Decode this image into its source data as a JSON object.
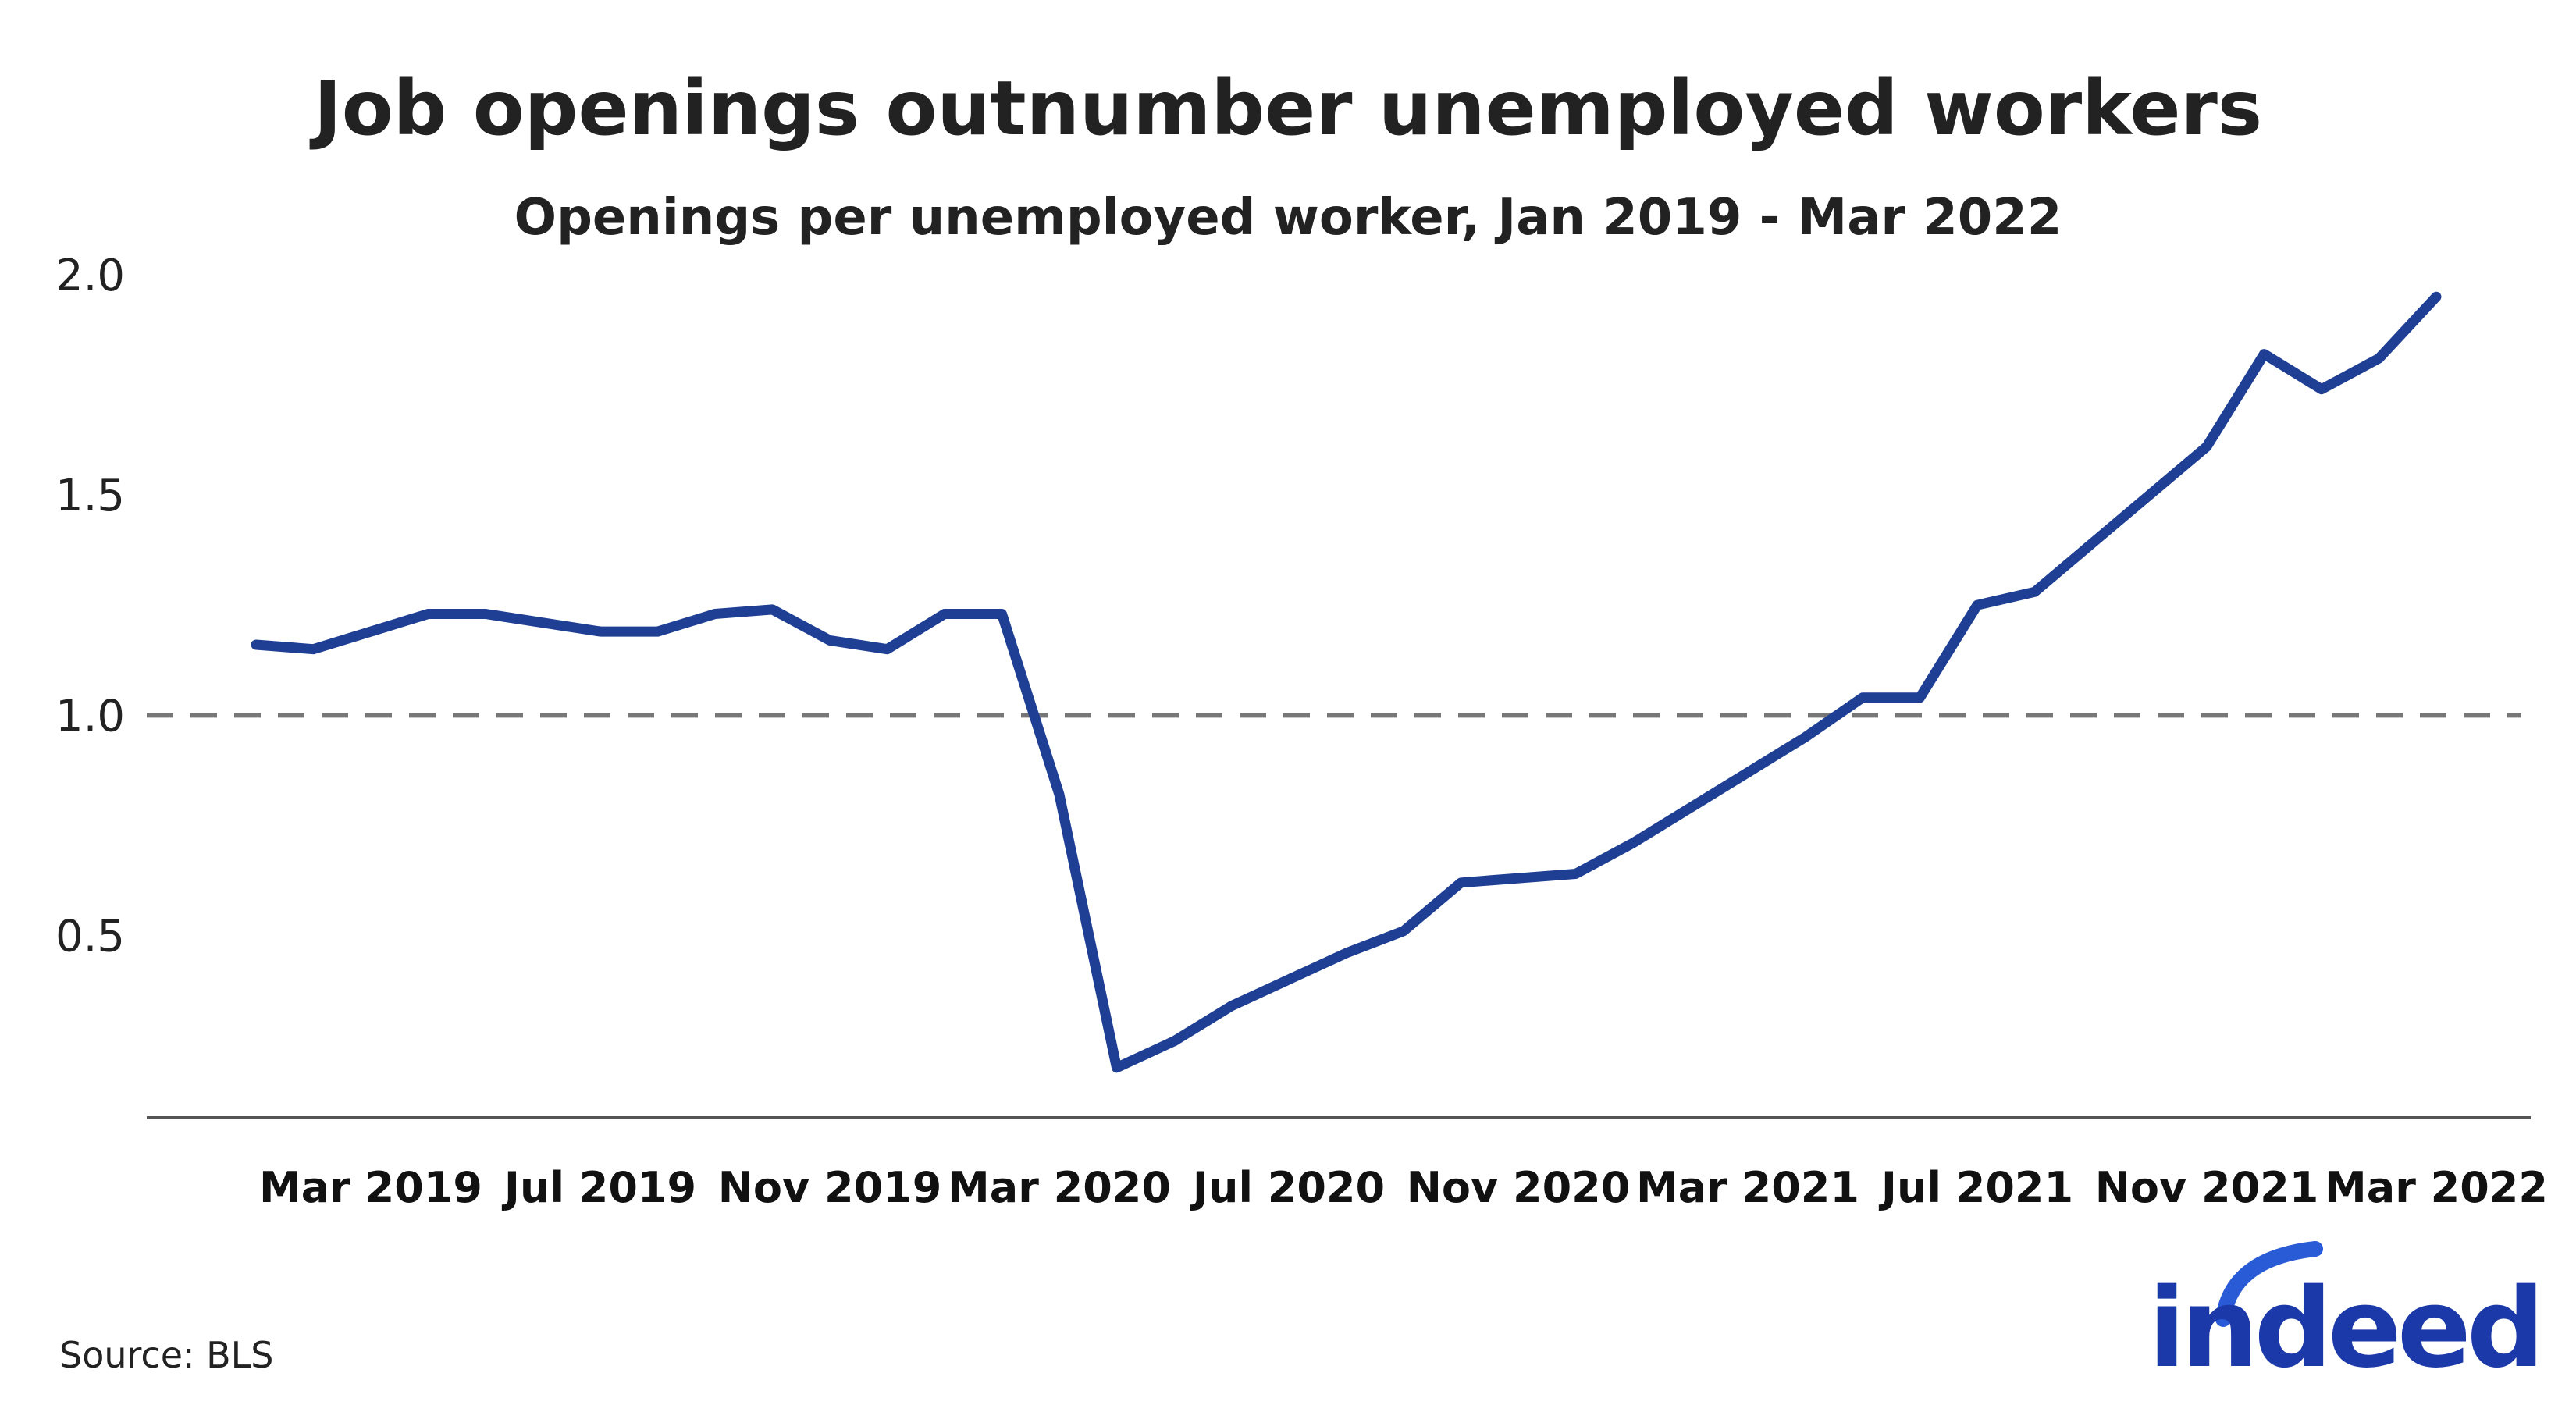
{
  "chart_data": {
    "type": "line",
    "title": "Job openings outnumber unemployed workers",
    "subtitle": "Openings per unemployed worker, Jan 2019 - Mar 2022",
    "source": "Source: BLS",
    "brand": "indeed",
    "xlabel": "",
    "ylabel": "",
    "ylim": [
      0.15,
      2.0
    ],
    "yticks": [
      "0.5",
      "1.0",
      "1.5",
      "2.0"
    ],
    "x_tick_labels": [
      "Mar 2019",
      "Jul 2019",
      "Nov 2019",
      "Mar 2020",
      "Jul 2020",
      "Nov 2020",
      "Mar 2021",
      "Jul 2021",
      "Nov 2021",
      "Mar 2022"
    ],
    "reference_line": {
      "y": 1.0,
      "style": "dashed"
    },
    "grid": false,
    "series": [
      {
        "x": [
          "Jan 2019",
          "Feb 2019",
          "Mar 2019",
          "Apr 2019",
          "May 2019",
          "Jun 2019",
          "Jul 2019",
          "Aug 2019",
          "Sep 2019",
          "Oct 2019",
          "Nov 2019",
          "Dec 2019",
          "Jan 2020",
          "Feb 2020",
          "Mar 2020",
          "Apr 2020",
          "May 2020",
          "Jun 2020",
          "Jul 2020",
          "Aug 2020",
          "Sep 2020",
          "Oct 2020",
          "Nov 2020",
          "Dec 2020",
          "Jan 2021",
          "Feb 2021",
          "Mar 2021",
          "Apr 2021",
          "May 2021",
          "Jun 2021",
          "Jul 2021",
          "Aug 2021",
          "Sep 2021",
          "Oct 2021",
          "Nov 2021",
          "Dec 2021",
          "Jan 2022",
          "Feb 2022",
          "Mar 2022"
        ],
        "values": [
          1.16,
          1.15,
          1.19,
          1.23,
          1.23,
          1.21,
          1.19,
          1.19,
          1.23,
          1.24,
          1.17,
          1.15,
          1.23,
          1.23,
          0.82,
          0.2,
          0.26,
          0.34,
          0.4,
          0.46,
          0.51,
          0.62,
          0.63,
          0.64,
          0.71,
          0.79,
          0.87,
          0.95,
          1.04,
          1.04,
          1.25,
          1.28,
          1.39,
          1.5,
          1.61,
          1.82,
          1.74,
          1.81,
          1.95
        ]
      }
    ],
    "colors": {
      "line": "#1f3f94",
      "reference": "#777777",
      "axis": "#555555",
      "logo_blue": "#1b39a8",
      "logo_arc": "#2a5bd7"
    }
  }
}
